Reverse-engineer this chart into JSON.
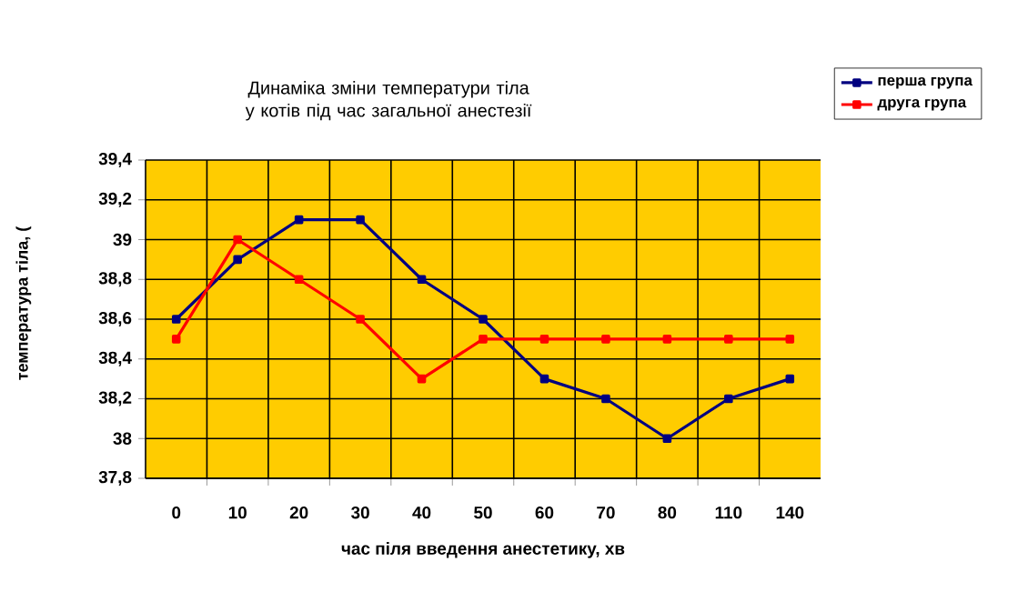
{
  "chart_data": {
    "type": "line",
    "title": "Динаміка зміни температури тіла у котів під час загальної анестезії",
    "xlabel": "час піля введення анестетику, хв",
    "ylabel": "температура тіла, (",
    "categories": [
      "0",
      "10",
      "20",
      "30",
      "40",
      "50",
      "60",
      "70",
      "80",
      "110",
      "140"
    ],
    "series": [
      {
        "name": "перша група",
        "color": "#000080",
        "values": [
          38.6,
          38.9,
          39.1,
          39.1,
          38.8,
          38.6,
          38.3,
          38.2,
          38.0,
          38.2,
          38.3
        ]
      },
      {
        "name": "друга група",
        "color": "#ff0000",
        "values": [
          38.5,
          39.0,
          38.8,
          38.6,
          38.3,
          38.5,
          38.5,
          38.5,
          38.5,
          38.5,
          38.5
        ]
      }
    ],
    "ylim": [
      37.8,
      39.4
    ],
    "yticks": [
      {
        "value": 37.8,
        "label": "37,8"
      },
      38,
      {
        "value": 38.2,
        "label": "38,2"
      },
      {
        "value": 38.4,
        "label": "38,4"
      },
      {
        "value": 38.6,
        "label": "38,6"
      },
      {
        "value": 38.8,
        "label": "38,8"
      },
      39,
      {
        "value": 39.2,
        "label": "39,2"
      },
      {
        "value": 39.4,
        "label": "39,4"
      }
    ],
    "grid": true,
    "legend": "top right",
    "marker": "square",
    "line_style": "solid"
  }
}
